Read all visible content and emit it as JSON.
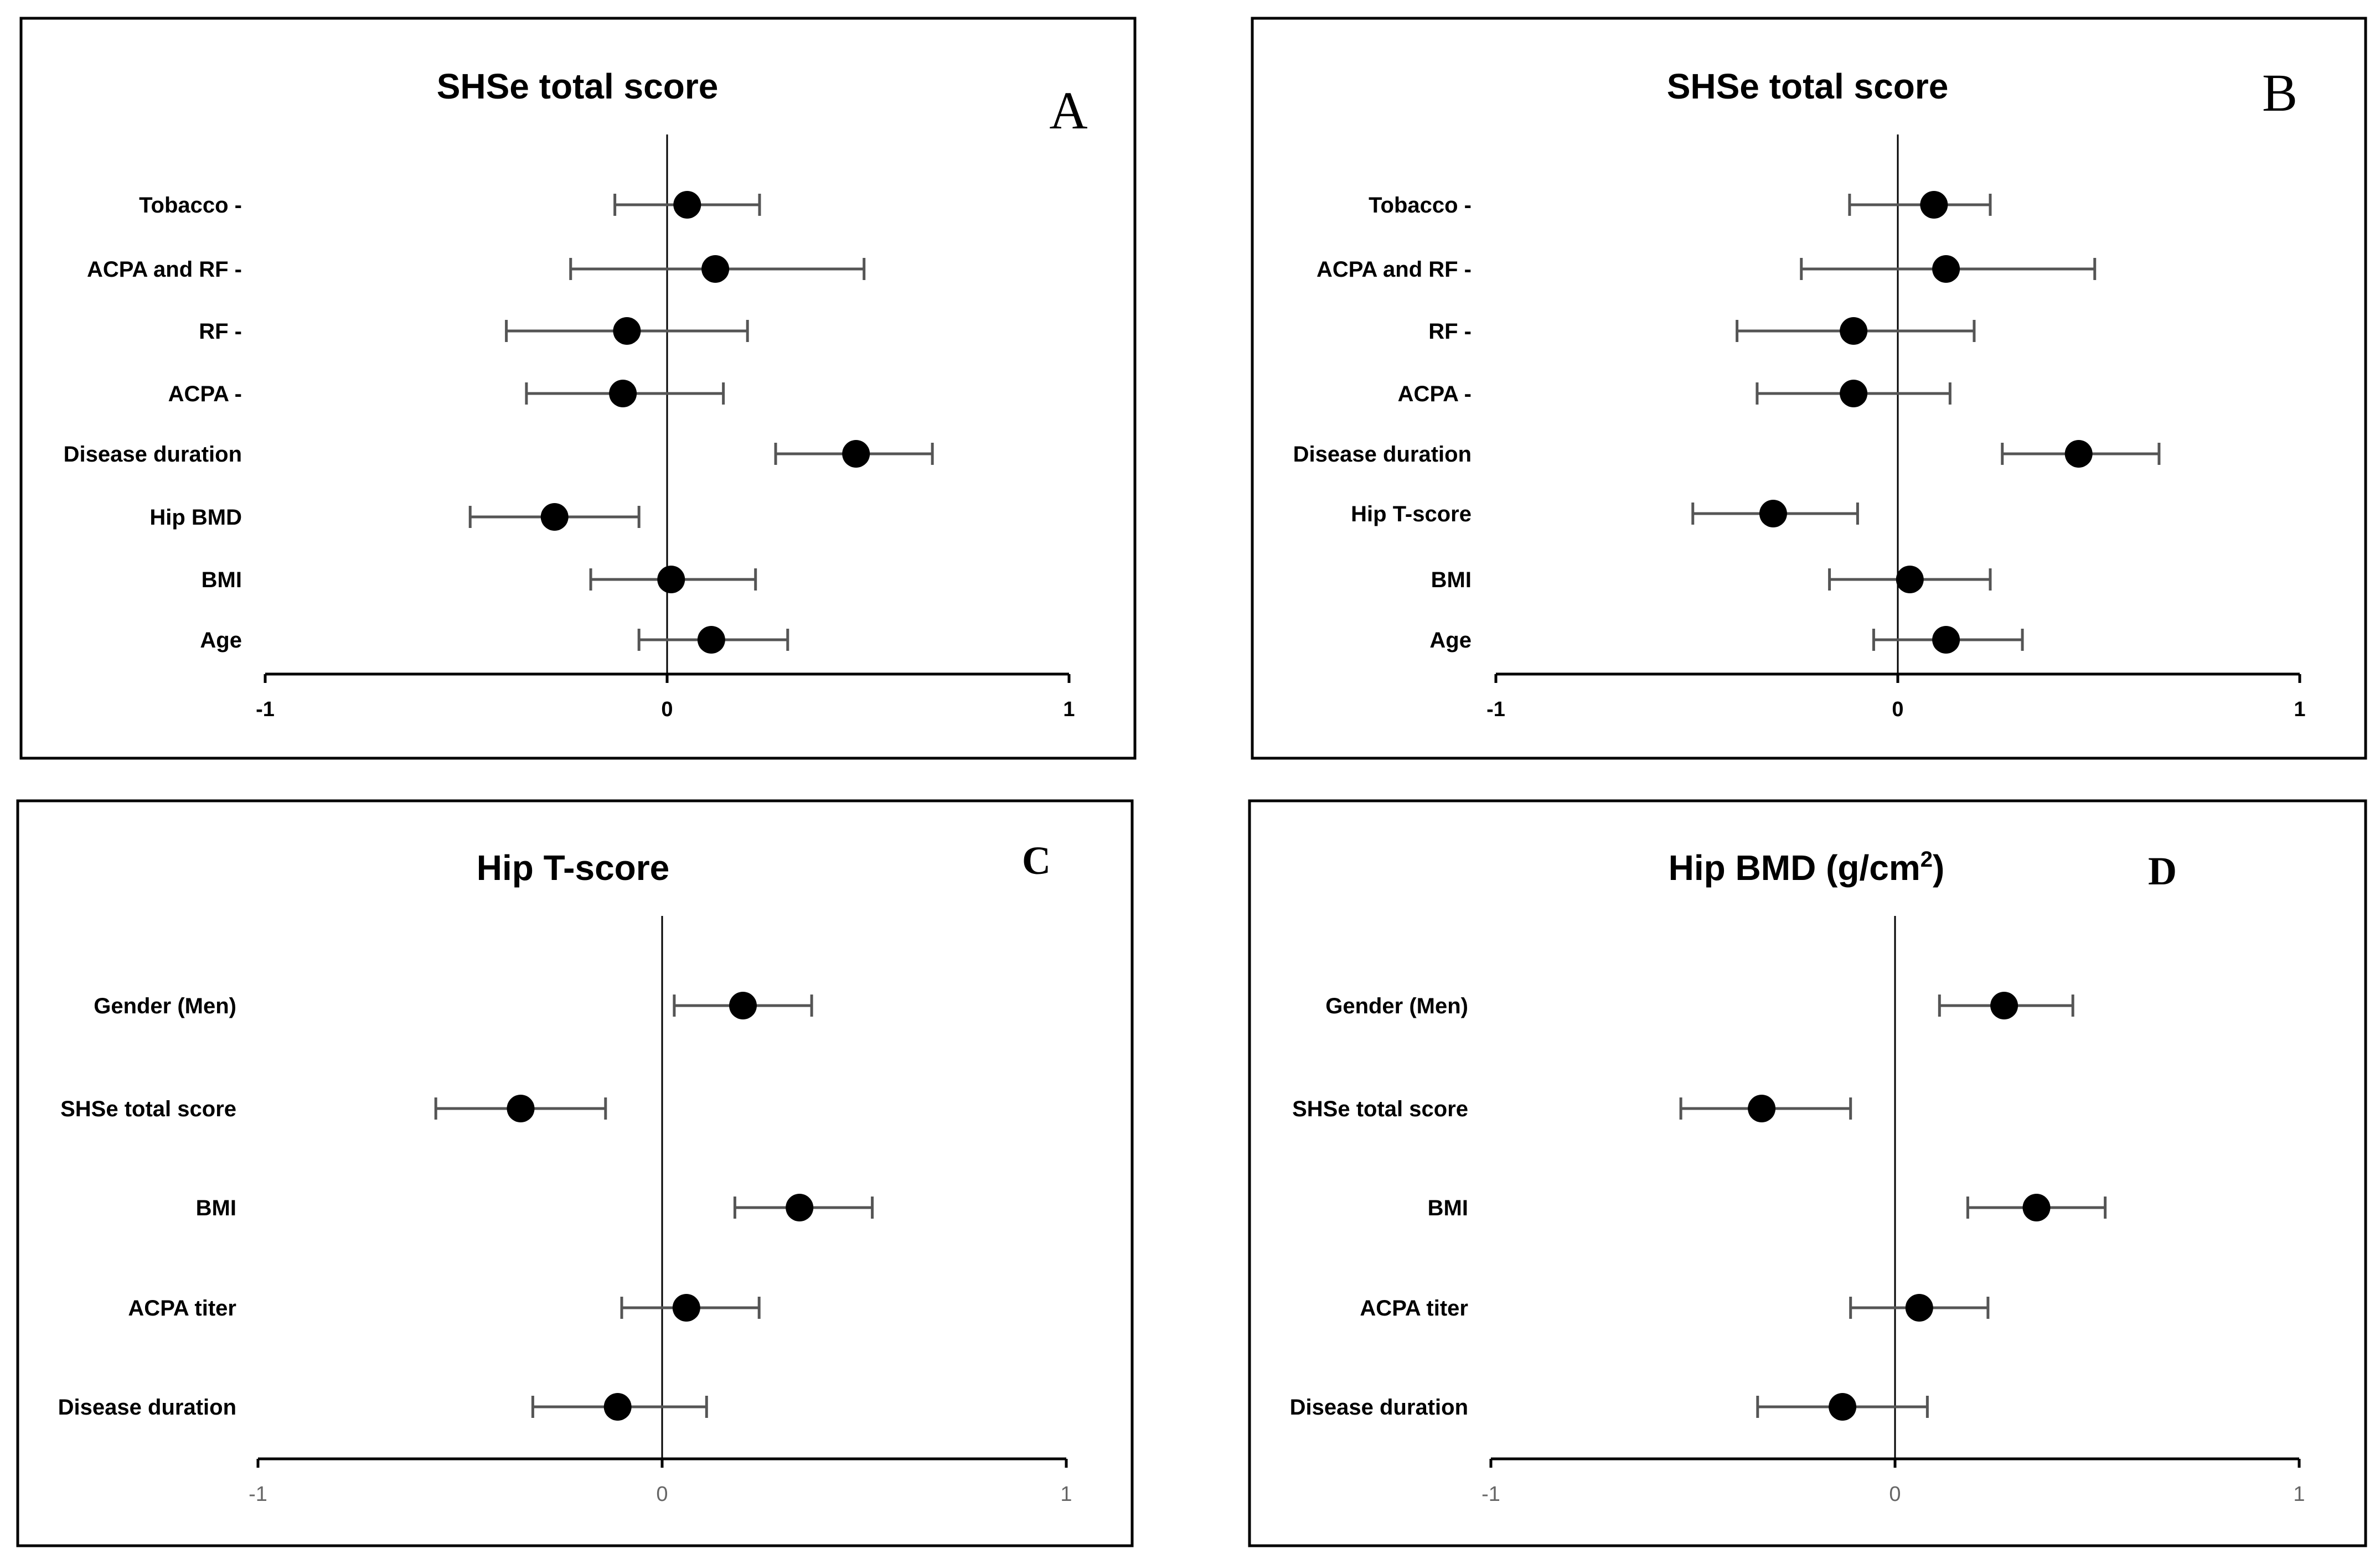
{
  "figure": {
    "colors": {
      "border": "#000000",
      "axis": "#000000",
      "errorbar": "#555555",
      "point": "#000000",
      "tick_dark": "#000000",
      "tick_gray": "#666666"
    }
  },
  "chart_data": [
    {
      "type": "forest",
      "panel": "A",
      "title": "SHSe total score",
      "xlim": [
        -1,
        1
      ],
      "xticks": [
        "-1",
        "0",
        "1"
      ],
      "categories": [
        "Tobacco -",
        "ACPA and RF -",
        "RF -",
        "ACPA -",
        "Disease duration",
        "Hip BMD",
        "BMI",
        "Age"
      ],
      "estimates": [
        0.05,
        0.12,
        -0.1,
        -0.11,
        0.47,
        -0.28,
        0.01,
        0.11
      ],
      "lower": [
        -0.13,
        -0.24,
        -0.4,
        -0.35,
        0.27,
        -0.49,
        -0.19,
        -0.07
      ],
      "upper": [
        0.23,
        0.49,
        0.2,
        0.14,
        0.66,
        -0.07,
        0.22,
        0.3
      ]
    },
    {
      "type": "forest",
      "panel": "B",
      "title": "SHSe total score",
      "xlim": [
        -1,
        1
      ],
      "xticks": [
        "-1",
        "0",
        "1"
      ],
      "categories": [
        "Tobacco -",
        "ACPA and RF -",
        "RF -",
        "ACPA -",
        "Disease duration",
        "Hip T-score",
        "BMI",
        "Age"
      ],
      "estimates": [
        0.09,
        0.12,
        -0.11,
        -0.11,
        0.45,
        -0.31,
        0.03,
        0.12
      ],
      "lower": [
        -0.12,
        -0.24,
        -0.4,
        -0.35,
        0.26,
        -0.51,
        -0.17,
        -0.06
      ],
      "upper": [
        0.23,
        0.49,
        0.19,
        0.13,
        0.65,
        -0.1,
        0.23,
        0.31
      ]
    },
    {
      "type": "forest",
      "panel": "C",
      "title": "Hip T-score",
      "xlim": [
        -1,
        1
      ],
      "xticks": [
        "-1",
        "0",
        "1"
      ],
      "categories": [
        "Gender (Men)",
        "SHSe total score",
        "BMI",
        "ACPA titer",
        "Disease duration"
      ],
      "estimates": [
        0.2,
        -0.35,
        0.34,
        0.06,
        -0.11
      ],
      "lower": [
        0.03,
        -0.56,
        0.18,
        -0.1,
        -0.32
      ],
      "upper": [
        0.37,
        -0.14,
        0.52,
        0.24,
        0.11
      ]
    },
    {
      "type": "forest",
      "panel": "D",
      "title": "Hip BMD (g/cm",
      "title_superscript": "2",
      "title_suffix": ")",
      "xlim": [
        -1,
        1
      ],
      "xticks": [
        "-1",
        "0",
        "1"
      ],
      "categories": [
        "Gender (Men)",
        "SHSe total score",
        "BMI",
        "ACPA titer",
        "Disease duration"
      ],
      "estimates": [
        0.27,
        -0.33,
        0.35,
        0.06,
        -0.13
      ],
      "lower": [
        0.11,
        -0.53,
        0.18,
        -0.11,
        -0.34
      ],
      "upper": [
        0.44,
        -0.11,
        0.52,
        0.23,
        0.08
      ]
    }
  ]
}
